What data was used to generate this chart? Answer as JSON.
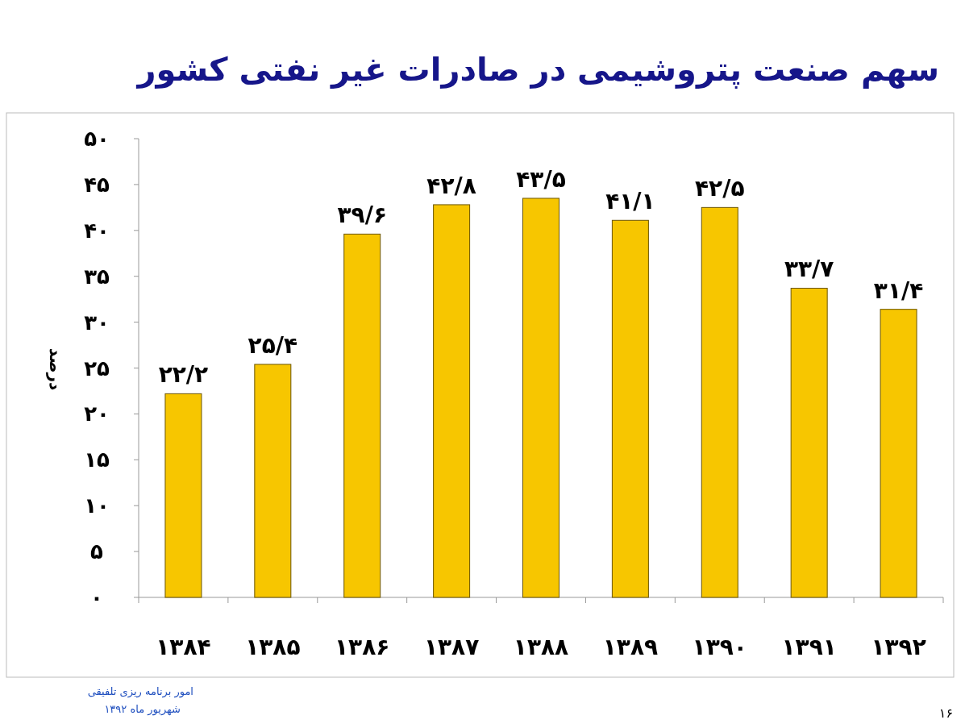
{
  "chart_data": {
    "type": "bar",
    "title": "سهم صنعت پتروشیمی در صادرات غیر نفتی کشور",
    "ylabel": "درصد",
    "categories": [
      "۱۳۸۴",
      "۱۳۸۵",
      "۱۳۸۶",
      "۱۳۸۷",
      "۱۳۸۸",
      "۱۳۸۹",
      "۱۳۹۰",
      "۱۳۹۱",
      "۱۳۹۲"
    ],
    "values": [
      22.2,
      25.4,
      39.6,
      42.8,
      43.5,
      41.1,
      42.5,
      33.7,
      31.4
    ],
    "value_labels": [
      "۲۲/۲",
      "۲۵/۴",
      "۳۹/۶",
      "۴۲/۸",
      "۴۳/۵",
      "۴۱/۱",
      "۴۲/۵",
      "۳۳/۷",
      "۳۱/۴"
    ],
    "color": "#f7c600",
    "ylim": [
      0,
      50
    ],
    "yticks": [
      {
        "value": 0,
        "label": "۰"
      },
      {
        "value": 5,
        "label": "۵"
      },
      {
        "value": 10,
        "label": "۱۰"
      },
      {
        "value": 15,
        "label": "۱۵"
      },
      {
        "value": 20,
        "label": "۲۰"
      },
      {
        "value": 25,
        "label": "۲۵"
      },
      {
        "value": 30,
        "label": "۳۰"
      },
      {
        "value": 35,
        "label": "۳۵"
      },
      {
        "value": 40,
        "label": "۴۰"
      },
      {
        "value": 45,
        "label": "۴۵"
      },
      {
        "value": 50,
        "label": "۵۰"
      }
    ],
    "annotations": [
      "امور برنامه ریزی تلفیقی",
      "شهریور ماه ۱۳۹۲",
      "۱۶"
    ]
  }
}
